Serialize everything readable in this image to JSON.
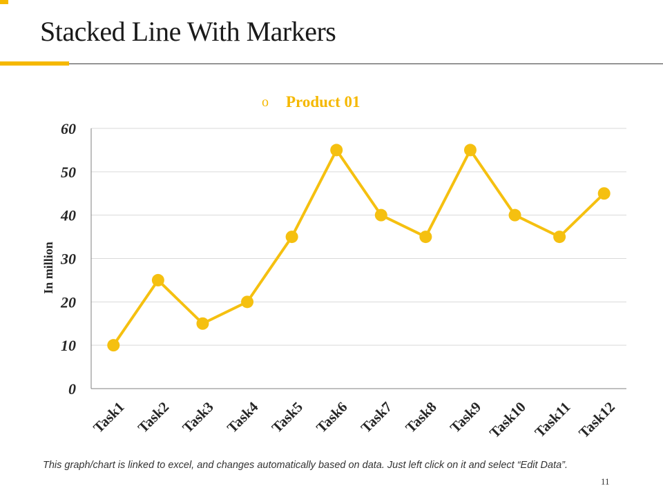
{
  "slide": {
    "title": "Stacked Line With Markers",
    "footnote": "This graph/chart is linked to excel, and changes automatically based on data. Just left click on it and select “Edit Data”.",
    "page_number": "11"
  },
  "colors": {
    "accent": "#f5b800",
    "line": "#f5c010",
    "grid": "#d9d9d9",
    "axis": "#7f7f7f",
    "text": "#262626"
  },
  "chart_data": {
    "type": "line",
    "title": "",
    "xlabel": "",
    "ylabel": "In million",
    "categories": [
      "Task1",
      "Task2",
      "Task3",
      "Task4",
      "Task5",
      "Task6",
      "Task7",
      "Task8",
      "Task9",
      "Task10",
      "Task11",
      "Task12"
    ],
    "series": [
      {
        "name": "Product 01",
        "values": [
          10,
          25,
          15,
          20,
          35,
          55,
          40,
          35,
          55,
          40,
          35,
          45
        ]
      }
    ],
    "ylim": [
      0,
      60
    ],
    "yticks": [
      0,
      10,
      20,
      30,
      40,
      50,
      60
    ],
    "grid": true,
    "legend": "top-center",
    "legend_marker": "o",
    "markers": true
  }
}
